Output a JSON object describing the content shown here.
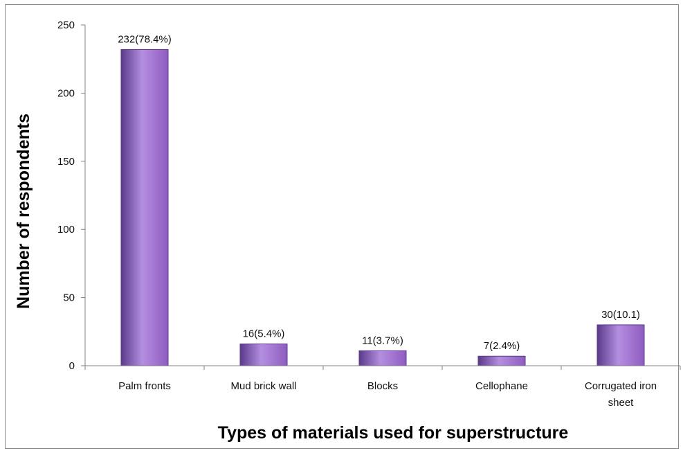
{
  "chart_data": {
    "type": "bar",
    "title": "",
    "xlabel": "Types of materials used for superstructure",
    "ylabel": "Number of respondents",
    "categories": [
      [
        "Palm fronts"
      ],
      [
        "Mud brick wall"
      ],
      [
        "Blocks"
      ],
      [
        "Cellophane"
      ],
      [
        "Corrugated iron",
        "sheet"
      ]
    ],
    "values": [
      232,
      16,
      11,
      7,
      30
    ],
    "data_labels": [
      "232(78.4%)",
      "16(5.4%)",
      "11(3.7%)",
      "7(2.4%)",
      "30(10.1)"
    ],
    "ylim": [
      0,
      250
    ],
    "yticks": [
      0,
      50,
      100,
      150,
      200,
      250
    ],
    "grid": false,
    "legend": "none",
    "bar_color": "#8e5cc0",
    "bar_color_dark": "#5b3a8a",
    "bar_color_light": "#b48ee0"
  }
}
